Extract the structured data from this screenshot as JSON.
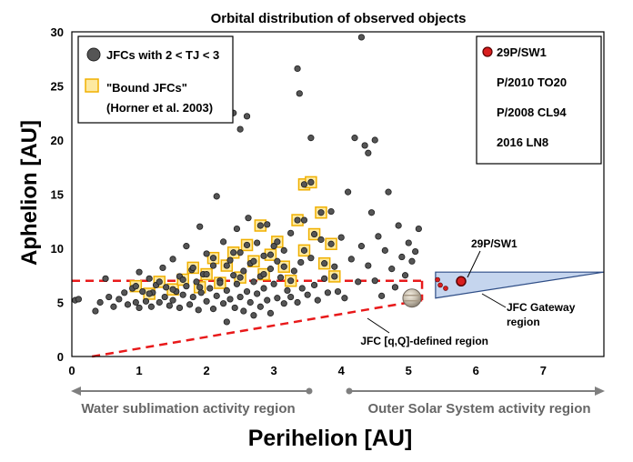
{
  "chart_data": {
    "type": "scatter",
    "title": "Orbital distribution of observed objects",
    "xlabel": "Perihelion [AU]",
    "ylabel": "Aphelion [AU]",
    "xlim": [
      0,
      7.9
    ],
    "ylim": [
      0,
      30
    ],
    "xticks": [
      0,
      1,
      2,
      3,
      4,
      5,
      6,
      7
    ],
    "yticks": [
      0,
      5,
      10,
      15,
      20,
      25,
      30
    ],
    "legend_left": {
      "jfc_label": "JFCs with 2 < TJ < 3",
      "bound_label_line1": "\"Bound JFCs\"",
      "bound_label_line2": "(Horner et al. 2003)"
    },
    "legend_right": {
      "items": [
        "29P/SW1",
        "P/2010 TO20",
        "P/2008 CL94",
        "2016 LN8"
      ]
    },
    "annotations": {
      "sw1_label": "29P/SW1",
      "gateway_line1": "JFC Gateway",
      "gateway_line2": "region",
      "jfc_region": "JFC [q,Q]-defined region",
      "water_region": "Water sublimation activity region",
      "outer_region": "Outer Solar System activity region"
    },
    "jfc_region_boundary": {
      "aphelion_cap": 7.0,
      "perihelion_max": 5.2,
      "lower_line": [
        [
          0.3,
          0.0
        ],
        [
          5.2,
          5.2
        ]
      ]
    },
    "gateway_region": [
      [
        5.4,
        5.4
      ],
      [
        5.4,
        7.8
      ],
      [
        7.9,
        7.8
      ]
    ],
    "highlight_points": [
      {
        "name": "29P/SW1",
        "q": 5.78,
        "Q": 6.95
      },
      {
        "name": "P/2010 TO20",
        "q": 5.55,
        "Q": 6.3
      },
      {
        "name": "P/2008 CL94",
        "q": 5.47,
        "Q": 6.6
      },
      {
        "name": "2016 LN8",
        "q": 5.43,
        "Q": 7.1
      }
    ],
    "jupiter": {
      "q": 5.05,
      "Q": 5.4
    },
    "series": [
      {
        "name": "JFCs with 2 < TJ < 3",
        "points": [
          [
            0.05,
            5.2
          ],
          [
            0.1,
            5.3
          ],
          [
            0.35,
            4.2
          ],
          [
            0.42,
            5.0
          ],
          [
            0.5,
            7.2
          ],
          [
            0.55,
            5.5
          ],
          [
            0.62,
            4.6
          ],
          [
            0.7,
            5.3
          ],
          [
            0.78,
            5.9
          ],
          [
            0.83,
            4.8
          ],
          [
            0.9,
            6.3
          ],
          [
            0.95,
            5.0
          ],
          [
            1.0,
            7.8
          ],
          [
            1.0,
            4.5
          ],
          [
            1.05,
            6.0
          ],
          [
            1.1,
            5.1
          ],
          [
            1.15,
            7.2
          ],
          [
            1.18,
            4.6
          ],
          [
            1.2,
            5.9
          ],
          [
            1.25,
            6.6
          ],
          [
            1.3,
            5.0
          ],
          [
            1.35,
            8.2
          ],
          [
            1.38,
            5.5
          ],
          [
            1.4,
            6.4
          ],
          [
            1.45,
            4.7
          ],
          [
            1.5,
            9.0
          ],
          [
            1.5,
            5.2
          ],
          [
            1.55,
            6.0
          ],
          [
            1.6,
            7.4
          ],
          [
            1.6,
            4.5
          ],
          [
            1.65,
            5.7
          ],
          [
            1.7,
            10.2
          ],
          [
            1.7,
            6.5
          ],
          [
            1.75,
            4.8
          ],
          [
            1.78,
            8.0
          ],
          [
            1.8,
            5.5
          ],
          [
            1.85,
            6.9
          ],
          [
            1.88,
            4.3
          ],
          [
            1.9,
            12.0
          ],
          [
            1.92,
            5.9
          ],
          [
            1.95,
            7.6
          ],
          [
            2.0,
            5.1
          ],
          [
            2.0,
            9.5
          ],
          [
            2.05,
            6.3
          ],
          [
            2.1,
            4.4
          ],
          [
            2.1,
            8.4
          ],
          [
            2.15,
            14.8
          ],
          [
            2.15,
            5.6
          ],
          [
            2.2,
            7.0
          ],
          [
            2.25,
            4.9
          ],
          [
            2.25,
            10.6
          ],
          [
            2.3,
            6.1
          ],
          [
            2.3,
            3.2
          ],
          [
            2.35,
            8.9
          ],
          [
            2.35,
            5.3
          ],
          [
            2.4,
            22.5
          ],
          [
            2.4,
            7.5
          ],
          [
            2.42,
            4.5
          ],
          [
            2.45,
            11.8
          ],
          [
            2.45,
            6.7
          ],
          [
            2.5,
            21.0
          ],
          [
            2.5,
            5.5
          ],
          [
            2.5,
            9.6
          ],
          [
            2.55,
            4.2
          ],
          [
            2.55,
            7.9
          ],
          [
            2.6,
            22.2
          ],
          [
            2.6,
            6.0
          ],
          [
            2.62,
            12.8
          ],
          [
            2.65,
            5.0
          ],
          [
            2.65,
            8.6
          ],
          [
            2.7,
            6.9
          ],
          [
            2.7,
            3.8
          ],
          [
            2.75,
            10.5
          ],
          [
            2.75,
            5.8
          ],
          [
            2.8,
            7.4
          ],
          [
            2.8,
            4.6
          ],
          [
            2.85,
            9.3
          ],
          [
            2.85,
            6.3
          ],
          [
            2.9,
            12.2
          ],
          [
            2.9,
            5.2
          ],
          [
            2.95,
            8.1
          ],
          [
            2.95,
            4.0
          ],
          [
            3.0,
            10.2
          ],
          [
            3.0,
            6.7
          ],
          [
            3.05,
            5.4
          ],
          [
            3.05,
            8.8
          ],
          [
            3.1,
            7.3
          ],
          [
            3.15,
            4.9
          ],
          [
            3.15,
            9.8
          ],
          [
            3.2,
            6.1
          ],
          [
            3.25,
            5.5
          ],
          [
            3.25,
            11.4
          ],
          [
            3.3,
            7.9
          ],
          [
            3.35,
            26.6
          ],
          [
            3.35,
            5.0
          ],
          [
            3.38,
            24.3
          ],
          [
            3.4,
            8.7
          ],
          [
            3.42,
            6.3
          ],
          [
            3.45,
            12.6
          ],
          [
            3.5,
            5.7
          ],
          [
            3.55,
            20.2
          ],
          [
            3.55,
            9.1
          ],
          [
            3.6,
            6.6
          ],
          [
            3.65,
            5.2
          ],
          [
            3.7,
            10.8
          ],
          [
            3.75,
            7.2
          ],
          [
            3.8,
            5.9
          ],
          [
            3.85,
            13.4
          ],
          [
            3.9,
            8.3
          ],
          [
            3.95,
            6.0
          ],
          [
            4.0,
            11.0
          ],
          [
            4.05,
            5.4
          ],
          [
            4.1,
            15.2
          ],
          [
            4.15,
            9.0
          ],
          [
            4.2,
            20.2
          ],
          [
            4.25,
            6.9
          ],
          [
            4.3,
            10.2
          ],
          [
            4.3,
            29.5
          ],
          [
            4.35,
            19.5
          ],
          [
            4.4,
            18.8
          ],
          [
            4.4,
            8.4
          ],
          [
            4.45,
            13.3
          ],
          [
            4.5,
            20.0
          ],
          [
            4.5,
            7.0
          ],
          [
            4.55,
            11.1
          ],
          [
            4.6,
            5.6
          ],
          [
            4.65,
            9.8
          ],
          [
            4.7,
            15.2
          ],
          [
            4.75,
            8.1
          ],
          [
            4.8,
            6.4
          ],
          [
            4.85,
            12.1
          ],
          [
            4.9,
            9.2
          ],
          [
            4.95,
            7.5
          ],
          [
            5.0,
            10.5
          ],
          [
            5.05,
            8.8
          ],
          [
            5.1,
            9.7
          ],
          [
            5.15,
            11.8
          ]
        ]
      },
      {
        "name": "Bound JFCs",
        "points": [
          [
            0.95,
            6.5
          ],
          [
            1.15,
            5.8
          ],
          [
            1.3,
            6.9
          ],
          [
            1.5,
            6.2
          ],
          [
            1.65,
            7.1
          ],
          [
            1.8,
            8.2
          ],
          [
            1.9,
            6.4
          ],
          [
            2.0,
            7.6
          ],
          [
            2.1,
            9.1
          ],
          [
            2.2,
            6.8
          ],
          [
            2.3,
            8.4
          ],
          [
            2.4,
            9.6
          ],
          [
            2.5,
            7.3
          ],
          [
            2.6,
            10.3
          ],
          [
            2.7,
            8.8
          ],
          [
            2.8,
            12.1
          ],
          [
            2.85,
            7.6
          ],
          [
            2.95,
            9.4
          ],
          [
            3.05,
            10.6
          ],
          [
            3.15,
            8.3
          ],
          [
            3.25,
            7.0
          ],
          [
            3.35,
            12.6
          ],
          [
            3.45,
            15.9
          ],
          [
            3.45,
            9.8
          ],
          [
            3.55,
            16.1
          ],
          [
            3.6,
            11.3
          ],
          [
            3.7,
            13.3
          ],
          [
            3.75,
            8.6
          ],
          [
            3.85,
            10.4
          ],
          [
            3.9,
            7.4
          ]
        ]
      }
    ]
  }
}
